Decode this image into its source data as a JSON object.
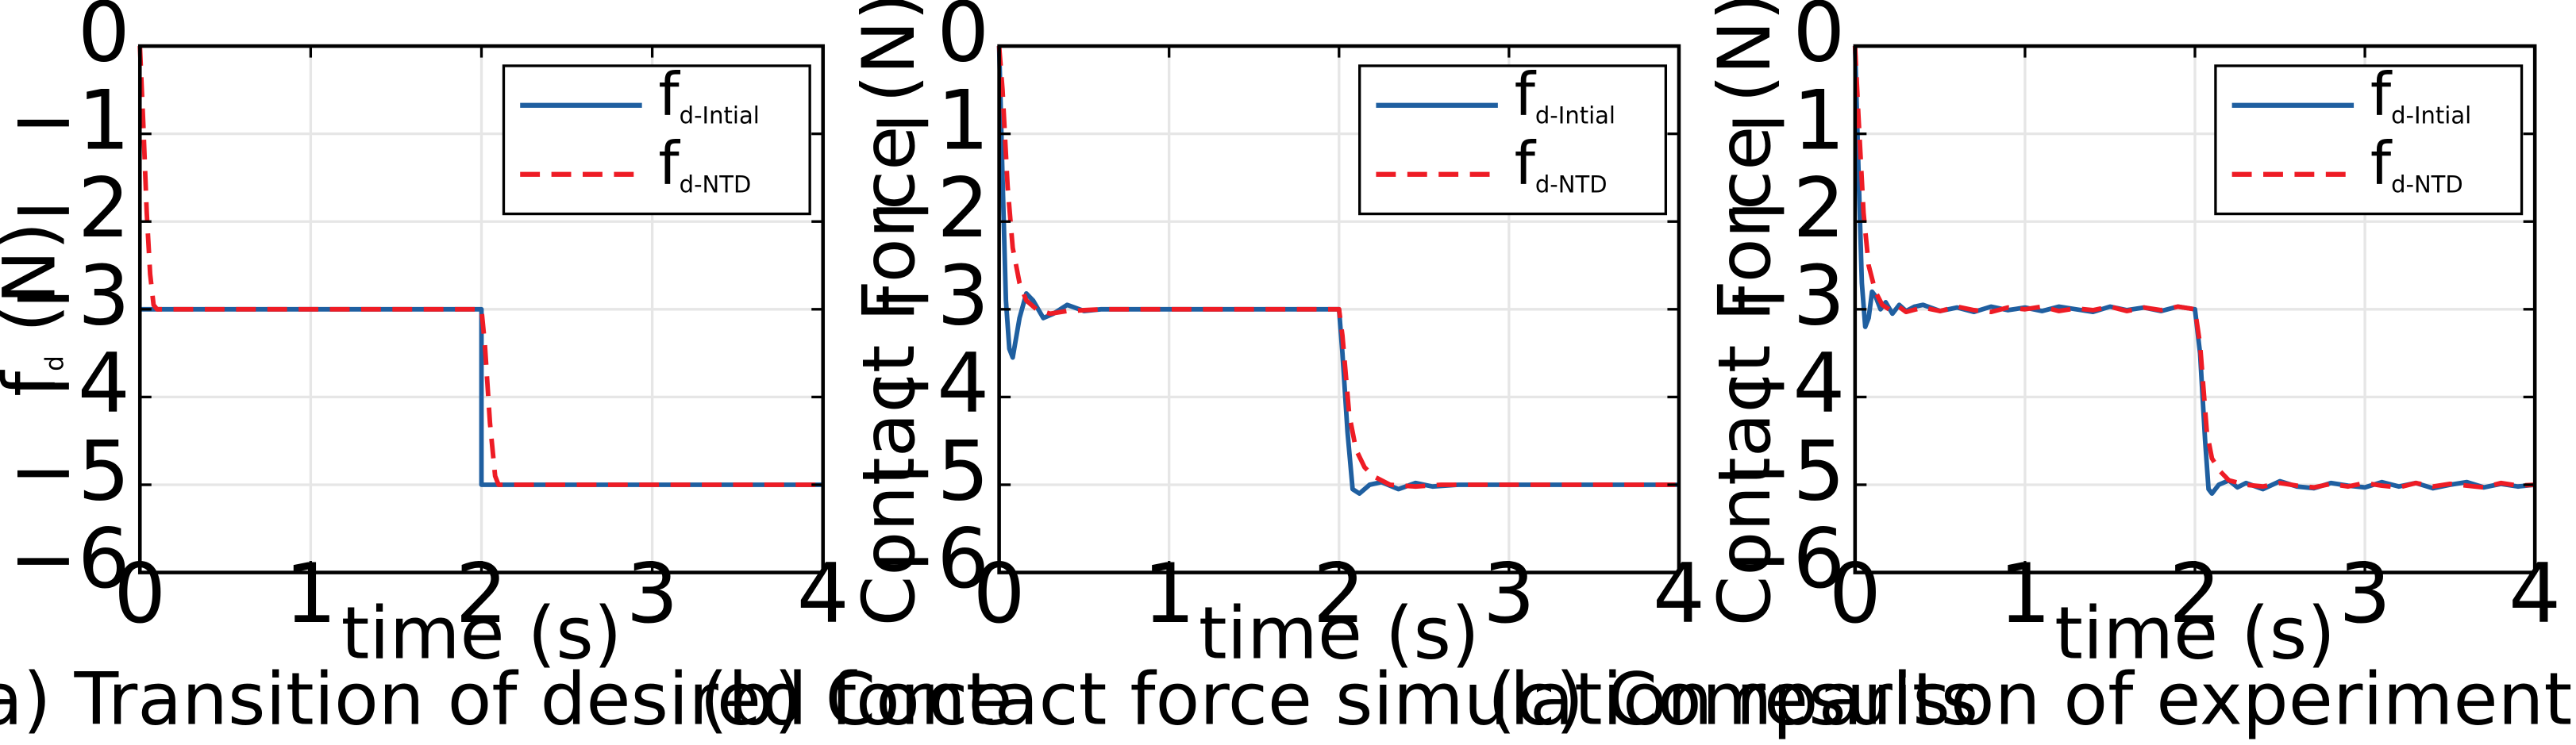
{
  "colors": {
    "initial": "#1f5fa0",
    "ntd": "#ee1c25",
    "grid": "#e6e6e6"
  },
  "chart_data": [
    {
      "type": "line",
      "id": "a",
      "caption": "(a) Transition of desired force",
      "xlabel": "time (s)",
      "ylabel_main": "f",
      "ylabel_sub": "d",
      "ylabel_tail": " (N)",
      "xlim": [
        0,
        4
      ],
      "ylim": [
        -6,
        0
      ],
      "xticks": [
        0,
        1,
        2,
        3,
        4
      ],
      "yticks": [
        0,
        -1,
        -2,
        -3,
        -4,
        -5,
        -6
      ],
      "grid": true,
      "legend_position": "top-right",
      "series": [
        {
          "name_main": "f",
          "name_sub": "d-Intial",
          "style": "solid",
          "x": [
            0,
            2,
            2,
            4
          ],
          "y": [
            -3,
            -3,
            -5,
            -5
          ]
        },
        {
          "name_main": "f",
          "name_sub": "d-NTD",
          "style": "dashed",
          "x": [
            0,
            0.02,
            0.04,
            0.06,
            0.08,
            0.1,
            2,
            2.02,
            2.05,
            2.08,
            2.1,
            4
          ],
          "y": [
            0,
            -0.9,
            -1.9,
            -2.6,
            -2.95,
            -3,
            -3,
            -3.4,
            -4.3,
            -4.9,
            -5,
            -5
          ]
        }
      ]
    },
    {
      "type": "line",
      "id": "b",
      "caption": "(b) Contact force simulation results",
      "xlabel": "time (s)",
      "ylabel_main": "Contact Force (N)",
      "ylabel_sub": "",
      "ylabel_tail": "",
      "xlim": [
        0,
        4
      ],
      "ylim": [
        -6,
        0
      ],
      "xticks": [
        0,
        1,
        2,
        3,
        4
      ],
      "yticks": [
        0,
        -1,
        -2,
        -3,
        -4,
        -5,
        -6
      ],
      "grid": true,
      "legend_position": "top-right",
      "series": [
        {
          "name_main": "f",
          "name_sub": "d-Intial",
          "style": "solid",
          "x": [
            0,
            0.02,
            0.04,
            0.06,
            0.08,
            0.12,
            0.16,
            0.2,
            0.26,
            0.32,
            0.4,
            0.5,
            0.6,
            0.8,
            2,
            2.02,
            2.05,
            2.08,
            2.12,
            2.18,
            2.25,
            2.35,
            2.45,
            2.55,
            2.7,
            2.9,
            4
          ],
          "y": [
            0,
            -1.5,
            -2.9,
            -3.45,
            -3.55,
            -3.1,
            -2.82,
            -2.9,
            -3.1,
            -3.05,
            -2.95,
            -3.02,
            -3,
            -3,
            -3,
            -3.5,
            -4.4,
            -5.05,
            -5.1,
            -5.0,
            -4.97,
            -5.05,
            -4.98,
            -5.02,
            -5,
            -5,
            -5
          ]
        },
        {
          "name_main": "f",
          "name_sub": "d-NTD",
          "style": "dashed",
          "x": [
            0,
            0.02,
            0.05,
            0.08,
            0.12,
            0.16,
            0.22,
            0.3,
            0.4,
            0.6,
            2,
            2.02,
            2.06,
            2.1,
            2.15,
            2.2,
            2.3,
            2.45,
            2.6,
            4
          ],
          "y": [
            0,
            -0.5,
            -1.6,
            -2.3,
            -2.7,
            -2.9,
            -3.0,
            -3.05,
            -3.02,
            -3,
            -3,
            -3.3,
            -4.2,
            -4.6,
            -4.8,
            -4.9,
            -5.0,
            -5.02,
            -5,
            -5
          ]
        }
      ]
    },
    {
      "type": "line",
      "id": "c",
      "caption": "(c) Comparison of experimental results",
      "xlabel": "time (s)",
      "ylabel_main": "Contact Force (N)",
      "ylabel_sub": "",
      "ylabel_tail": "",
      "xlim": [
        0,
        4
      ],
      "ylim": [
        -6,
        0
      ],
      "xticks": [
        0,
        1,
        2,
        3,
        4
      ],
      "yticks": [
        0,
        -1,
        -2,
        -3,
        -4,
        -5,
        -6
      ],
      "grid": true,
      "legend_position": "top-right",
      "series": [
        {
          "name_main": "f",
          "name_sub": "d-Intial",
          "style": "solid",
          "x": [
            0,
            0.02,
            0.04,
            0.06,
            0.08,
            0.1,
            0.12,
            0.15,
            0.18,
            0.22,
            0.26,
            0.3,
            0.35,
            0.4,
            0.5,
            0.6,
            0.7,
            0.8,
            0.9,
            1.0,
            1.1,
            1.2,
            1.3,
            1.4,
            1.5,
            1.6,
            1.7,
            1.8,
            1.9,
            2.0,
            2.03,
            2.06,
            2.08,
            2.1,
            2.14,
            2.2,
            2.25,
            2.3,
            2.4,
            2.5,
            2.6,
            2.7,
            2.8,
            2.9,
            3.0,
            3.1,
            3.2,
            3.3,
            3.4,
            3.5,
            3.6,
            3.7,
            3.8,
            3.9,
            4.0
          ],
          "y": [
            0,
            -1.4,
            -2.7,
            -3.2,
            -3.1,
            -2.8,
            -2.85,
            -3.0,
            -2.92,
            -3.05,
            -2.95,
            -3.02,
            -2.97,
            -2.95,
            -3.02,
            -2.98,
            -3.03,
            -2.97,
            -3.01,
            -2.98,
            -3.02,
            -2.97,
            -3.0,
            -3.03,
            -2.97,
            -3.01,
            -2.98,
            -3.02,
            -2.97,
            -3.0,
            -3.5,
            -4.5,
            -5.05,
            -5.1,
            -5.0,
            -4.95,
            -5.03,
            -4.98,
            -5.05,
            -4.96,
            -5.02,
            -5.04,
            -4.98,
            -5.01,
            -5.03,
            -4.97,
            -5.02,
            -4.98,
            -5.04,
            -5.0,
            -4.97,
            -5.03,
            -4.99,
            -5.02,
            -5.0
          ]
        },
        {
          "name_main": "f",
          "name_sub": "d-NTD",
          "style": "dashed",
          "x": [
            0,
            0.02,
            0.05,
            0.08,
            0.12,
            0.16,
            0.2,
            0.25,
            0.3,
            0.4,
            0.5,
            0.6,
            0.7,
            0.8,
            0.9,
            1.0,
            1.1,
            1.2,
            1.3,
            1.4,
            1.5,
            1.6,
            1.7,
            1.8,
            1.9,
            2.0,
            2.03,
            2.07,
            2.1,
            2.15,
            2.2,
            2.3,
            2.4,
            2.5,
            2.6,
            2.7,
            2.8,
            2.9,
            3.0,
            3.1,
            3.2,
            3.3,
            3.4,
            3.5,
            3.6,
            3.7,
            3.8,
            3.9,
            4.0
          ],
          "y": [
            0,
            -0.8,
            -1.9,
            -2.5,
            -2.8,
            -2.95,
            -3.0,
            -2.96,
            -3.03,
            -2.98,
            -3.02,
            -2.97,
            -3.01,
            -3.03,
            -2.98,
            -3.0,
            -2.97,
            -3.02,
            -2.99,
            -3.01,
            -2.97,
            -3.02,
            -2.98,
            -3.01,
            -2.97,
            -3.0,
            -3.4,
            -4.4,
            -4.7,
            -4.85,
            -4.95,
            -5.0,
            -5.02,
            -4.98,
            -5.01,
            -5.03,
            -4.99,
            -5.02,
            -4.98,
            -5.01,
            -5.03,
            -4.98,
            -5.02,
            -4.99,
            -5.01,
            -5.03,
            -4.98,
            -5.01,
            -5.0
          ]
        }
      ]
    }
  ]
}
